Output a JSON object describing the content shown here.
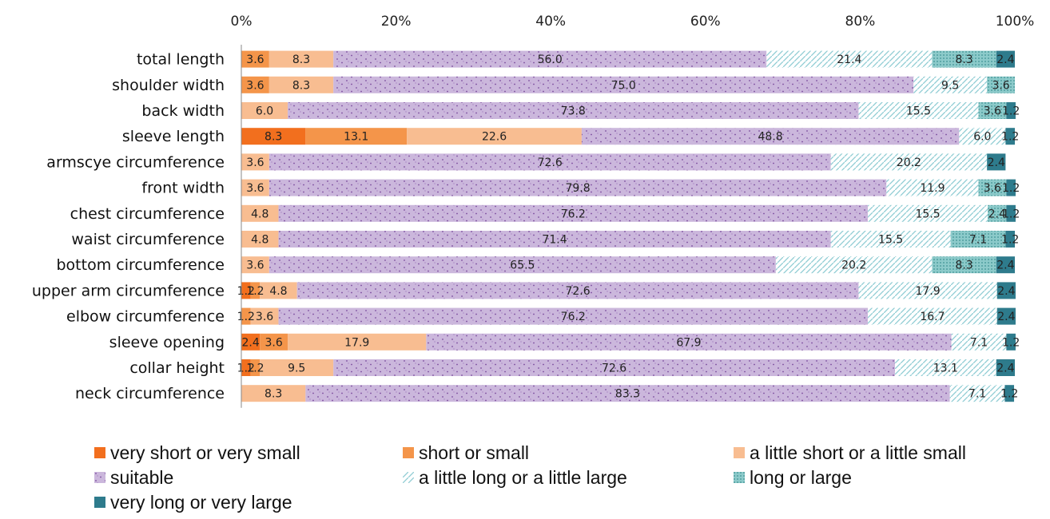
{
  "chart_data": {
    "type": "bar",
    "orientation": "horizontal",
    "stacked": "percent",
    "title": "",
    "xlabel": "",
    "ylabel": "",
    "xlim": [
      0,
      100
    ],
    "x_ticks": [
      "0%",
      "20%",
      "40%",
      "60%",
      "80%",
      "100%"
    ],
    "x_axis_position": "top",
    "grid": false,
    "legend_position": "bottom",
    "categories": [
      "total length",
      "shoulder width",
      "back width",
      "sleeve length",
      "armscye circumference",
      "front width",
      "chest circumference",
      "waist circumference",
      "bottom circumference",
      "upper arm circumference",
      "elbow circumference",
      "sleeve opening",
      "collar height",
      "neck circumference"
    ],
    "series": [
      {
        "name": "very short or very small",
        "color": "#f26f1e",
        "pattern": "solid",
        "values": [
          0,
          0,
          0,
          8.3,
          0,
          0,
          0,
          0,
          0,
          1.2,
          0,
          2.4,
          1.2,
          0
        ]
      },
      {
        "name": "short or small",
        "color": "#f4954a",
        "pattern": "solid",
        "values": [
          3.6,
          3.6,
          0,
          13.1,
          0,
          0,
          0,
          0,
          0,
          1.2,
          1.2,
          3.6,
          1.2,
          0
        ]
      },
      {
        "name": "a little short or a little small",
        "color": "#f8bd91",
        "pattern": "solid",
        "values": [
          8.3,
          8.3,
          6.0,
          22.6,
          3.6,
          3.6,
          4.8,
          4.8,
          3.6,
          4.8,
          3.6,
          17.9,
          9.5,
          8.3
        ]
      },
      {
        "name": "suitable",
        "color": "#cbb7dc",
        "pattern": "dots",
        "values": [
          56.0,
          75.0,
          73.8,
          48.8,
          72.6,
          79.8,
          76.2,
          71.4,
          65.5,
          72.6,
          76.2,
          67.9,
          72.6,
          83.3
        ]
      },
      {
        "name": "a little long or a little large",
        "color": "#a7d8dd",
        "pattern": "diagonal",
        "values": [
          21.4,
          9.5,
          15.5,
          6.0,
          20.2,
          11.9,
          15.5,
          15.5,
          20.2,
          17.9,
          16.7,
          7.1,
          13.1,
          7.1
        ]
      },
      {
        "name": "long or large",
        "color": "#7cc2c2",
        "pattern": "grid",
        "values": [
          8.3,
          3.6,
          3.6,
          0,
          0,
          3.6,
          2.4,
          7.1,
          8.3,
          0,
          0,
          0,
          0,
          0
        ]
      },
      {
        "name": "very long or very large",
        "color": "#2e7b8c",
        "pattern": "solid",
        "values": [
          2.4,
          0,
          1.2,
          1.2,
          2.4,
          1.2,
          1.2,
          1.2,
          2.4,
          2.4,
          2.4,
          1.2,
          2.4,
          1.2
        ]
      }
    ]
  }
}
